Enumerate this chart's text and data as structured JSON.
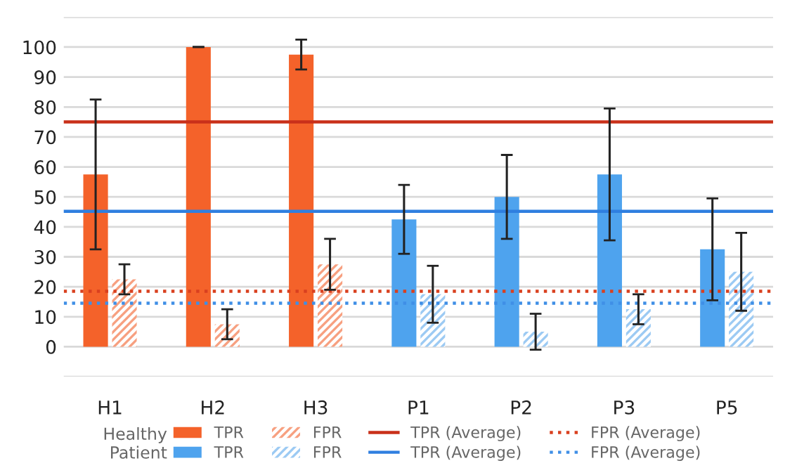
{
  "chart_data": {
    "type": "bar",
    "categories": [
      "H1",
      "H2",
      "H3",
      "P1",
      "P2",
      "P3",
      "P5"
    ],
    "series": [
      {
        "name": "TPR",
        "color": "#f4622a",
        "values": [
          57.5,
          100,
          97.5,
          null,
          null,
          null,
          null
        ],
        "errors": [
          25,
          0,
          5,
          null,
          null,
          null,
          null
        ]
      },
      {
        "name": "FPR",
        "color": "#f7a080",
        "values": [
          22.5,
          7.5,
          27.5,
          null,
          null,
          null,
          null
        ],
        "errors": [
          5,
          5,
          [
            19,
            36
          ],
          null,
          null,
          null,
          null
        ]
      },
      {
        "name": "TPR",
        "color": "#4ea3ee",
        "values": [
          null,
          null,
          null,
          42.5,
          50,
          57.5,
          32.5
        ],
        "errors": [
          null,
          null,
          null,
          [
            31,
            54
          ],
          [
            36,
            64
          ],
          [
            35.5,
            79.5
          ],
          [
            15.5,
            49.5
          ]
        ]
      },
      {
        "name": "FPR",
        "color": "#9ccaf3",
        "values": [
          null,
          null,
          null,
          17.5,
          5,
          12.5,
          25
        ],
        "errors": [
          null,
          null,
          null,
          [
            8,
            27
          ],
          [
            -1,
            11
          ],
          5,
          [
            12,
            38
          ]
        ]
      }
    ],
    "ref_lines": [
      {
        "axis": "y",
        "value": 75,
        "label": "TPR (Average)",
        "color": "#c9301a",
        "line_style": "solid"
      },
      {
        "axis": "y",
        "value": 45.2,
        "label": "TPR (Average)",
        "color": "#2f7fe0",
        "line_style": "solid"
      },
      {
        "axis": "y",
        "value": 18.5,
        "label": "FPR (Average)",
        "color": "#d9401f",
        "line_style": "dotted"
      },
      {
        "axis": "y",
        "value": 14.5,
        "label": "FPR (Average)",
        "color": "#3f8fe6",
        "line_style": "dotted"
      }
    ],
    "annotations": [
      "Healthy",
      "Patient"
    ],
    "ylim": [
      -10,
      110
    ],
    "yticks": [
      {
        "value": -10,
        "label": null
      },
      0,
      10,
      20,
      30,
      40,
      50,
      60,
      70,
      80,
      90,
      100,
      {
        "value": 110,
        "label": null
      }
    ],
    "grid": "y",
    "legend": "bottom"
  }
}
